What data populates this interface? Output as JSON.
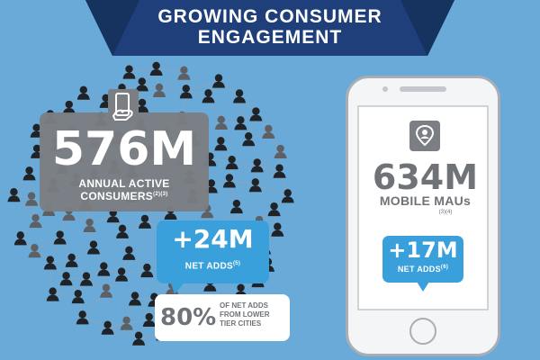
{
  "banner": {
    "title_line1": "GROWING CONSUMER",
    "title_line2": "ENGAGEMENT",
    "color": "#1e3f79"
  },
  "consumers_card": {
    "value": "576M",
    "label_line1": "ANNUAL ACTIVE",
    "label_line2": "CONSUMERS",
    "footnote": "(2)(3)",
    "icon": "phone-hand-icon"
  },
  "net_adds_card": {
    "value": "+24M",
    "label": "NET ADDS",
    "footnote": "(5)"
  },
  "lower_tier_card": {
    "value": "80%",
    "line1": "OF NET ADDS",
    "line2": "FROM LOWER",
    "line3": "TIER CITIES"
  },
  "mobile": {
    "value": "634M",
    "label": "MOBILE MAUs",
    "footnote": "(3)(4)",
    "icon": "user-location-icon",
    "net_adds_value": "+17M",
    "net_adds_label": "NET ADDS",
    "net_adds_footnote": "(6)"
  },
  "colors": {
    "background": "#6aaad8",
    "accent_blue": "#3aa0dc",
    "card_gray": "#7b7e82"
  }
}
